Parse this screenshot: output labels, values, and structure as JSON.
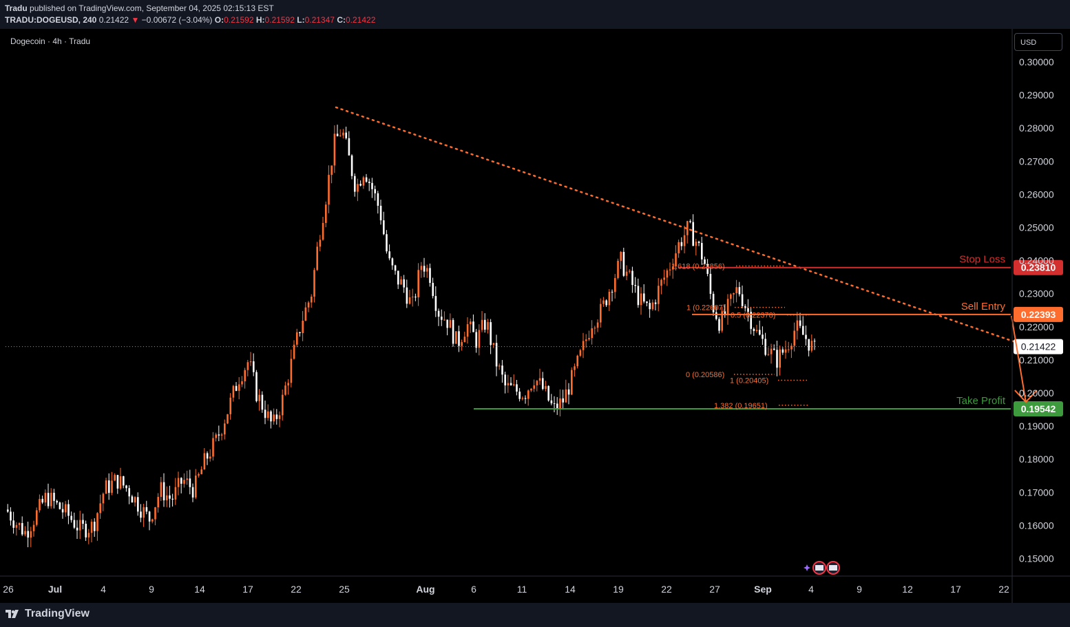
{
  "header": {
    "publisher": "Tradu",
    "published_text": "published on TradingView.com, September 04, 2025 02:15:13 EST",
    "symbol": "TRADU:DOGEUSD, 240",
    "last": "0.21422",
    "change_arrow": "▼",
    "change": "−0.00672 (−3.04%)",
    "o_label": "O:",
    "o_value": "0.21592",
    "h_label": "H:",
    "h_value": "0.21592",
    "l_label": "L:",
    "l_value": "0.21347",
    "c_label": "C:",
    "c_value": "0.21422"
  },
  "chart_label": "Dogecoin · 4h · Tradu",
  "currency_button": "USD",
  "footer": {
    "brand": "TradingView",
    "logo_icon": "tradingview-logo-icon"
  },
  "colors": {
    "up": "#ff6d2e",
    "down": "#ffffff",
    "stop": "#d32f2f",
    "entry": "#ff6d2e",
    "profit": "#3d9a3d",
    "trend": "#ff6d2e",
    "bg": "#000000"
  },
  "chart_data": {
    "type": "candlestick",
    "title": "Dogecoin · 4h · Tradu",
    "ylim": [
      0.1435,
      0.3085
    ],
    "y_ticks": [
      "0.30000",
      "0.29000",
      "0.28000",
      "0.27000",
      "0.26000",
      "0.25000",
      "0.24000",
      "0.23000",
      "0.22000",
      "0.21000",
      "0.20000",
      "0.19000",
      "0.18000",
      "0.17000",
      "0.16000",
      "0.15000"
    ],
    "x_ticks": [
      "26",
      "Jul",
      "4",
      "9",
      "14",
      "17",
      "22",
      "25",
      "Aug",
      "6",
      "11",
      "14",
      "19",
      "22",
      "27",
      "Sep",
      "4",
      "9",
      "12",
      "17",
      "22"
    ],
    "last_price": "0.21422",
    "price_path": [
      [
        0,
        0.165
      ],
      [
        0.6,
        0.161
      ],
      [
        1.2,
        0.158
      ],
      [
        1.8,
        0.163
      ],
      [
        2.5,
        0.169
      ],
      [
        3.2,
        0.166
      ],
      [
        3.9,
        0.163
      ],
      [
        4.6,
        0.159
      ],
      [
        5.4,
        0.16
      ],
      [
        6.1,
        0.171
      ],
      [
        6.9,
        0.174
      ],
      [
        7.6,
        0.171
      ],
      [
        8.3,
        0.166
      ],
      [
        8.9,
        0.162
      ],
      [
        9.6,
        0.171
      ],
      [
        10.3,
        0.168
      ],
      [
        11,
        0.174
      ],
      [
        11.7,
        0.171
      ],
      [
        12.4,
        0.18
      ],
      [
        13.1,
        0.186
      ],
      [
        13.8,
        0.195
      ],
      [
        14.5,
        0.205
      ],
      [
        15.1,
        0.21
      ],
      [
        15.6,
        0.2
      ],
      [
        16.1,
        0.195
      ],
      [
        16.6,
        0.19
      ],
      [
        17.2,
        0.198
      ],
      [
        17.8,
        0.21
      ],
      [
        18.4,
        0.222
      ],
      [
        19,
        0.23
      ],
      [
        19.5,
        0.248
      ],
      [
        20,
        0.262
      ],
      [
        20.4,
        0.275
      ],
      [
        20.9,
        0.28
      ],
      [
        21.3,
        0.272
      ],
      [
        21.8,
        0.262
      ],
      [
        22.3,
        0.268
      ],
      [
        22.8,
        0.262
      ],
      [
        23.3,
        0.255
      ],
      [
        23.8,
        0.24
      ],
      [
        24.3,
        0.235
      ],
      [
        24.8,
        0.232
      ],
      [
        25.3,
        0.226
      ],
      [
        25.9,
        0.24
      ],
      [
        26.4,
        0.236
      ],
      [
        26.9,
        0.225
      ],
      [
        27.5,
        0.222
      ],
      [
        28.1,
        0.215
      ],
      [
        28.7,
        0.221
      ],
      [
        29.3,
        0.216
      ],
      [
        29.9,
        0.222
      ],
      [
        30.5,
        0.21
      ],
      [
        31.1,
        0.202
      ],
      [
        31.7,
        0.201
      ],
      [
        32.3,
        0.2
      ],
      [
        32.9,
        0.205
      ],
      [
        33.5,
        0.201
      ],
      [
        34.1,
        0.195
      ],
      [
        34.7,
        0.198
      ],
      [
        35.3,
        0.205
      ],
      [
        35.9,
        0.213
      ],
      [
        36.5,
        0.222
      ],
      [
        37.1,
        0.225
      ],
      [
        37.7,
        0.233
      ],
      [
        38.3,
        0.24
      ],
      [
        38.9,
        0.234
      ],
      [
        39.5,
        0.228
      ],
      [
        40.1,
        0.225
      ],
      [
        40.7,
        0.232
      ],
      [
        41.3,
        0.238
      ],
      [
        41.9,
        0.245
      ],
      [
        42.5,
        0.25
      ],
      [
        43,
        0.246
      ],
      [
        43.5,
        0.24
      ],
      [
        44,
        0.227
      ],
      [
        44.5,
        0.221
      ],
      [
        45,
        0.226
      ],
      [
        45.6,
        0.232
      ],
      [
        46.2,
        0.225
      ],
      [
        46.8,
        0.218
      ],
      [
        47.4,
        0.214
      ],
      [
        48,
        0.21
      ],
      [
        48.6,
        0.214
      ],
      [
        49.2,
        0.22
      ],
      [
        49.8,
        0.217
      ],
      [
        50.4,
        0.213
      ],
      [
        51,
        0.212
      ],
      [
        51.6,
        0.21
      ],
      [
        52.1,
        0.238
      ],
      [
        52.6,
        0.225
      ],
      [
        53.1,
        0.218
      ],
      [
        53.7,
        0.207
      ],
      [
        54.3,
        0.212
      ],
      [
        54.9,
        0.218
      ],
      [
        55.5,
        0.222
      ],
      [
        56.1,
        0.221
      ],
      [
        56.7,
        0.224
      ],
      [
        57.3,
        0.22
      ],
      [
        57.9,
        0.214
      ],
      [
        58.5,
        0.209
      ],
      [
        59.1,
        0.21
      ],
      [
        59.7,
        0.206
      ],
      [
        60.3,
        0.214
      ],
      [
        60.9,
        0.218
      ],
      [
        61.5,
        0.222
      ],
      [
        61.9,
        0.2185
      ],
      [
        62.3,
        0.2142
      ]
    ],
    "annotations": {
      "stop_loss": {
        "label": "Stop Loss",
        "price": "0.23810",
        "color": "#d32f2f"
      },
      "sell_entry": {
        "label": "Sell Entry",
        "price": "0.22393",
        "color": "#ff6d2e"
      },
      "take_profit": {
        "label": "Take Profit",
        "price": "0.19542",
        "color": "#3d9a3d"
      },
      "fib_levels": [
        {
          "text": "1.618 (0.23856)",
          "price": 0.23856
        },
        {
          "text": "1 (0.22607)",
          "price": 0.22607
        },
        {
          "text": "0.5 (0.22378)",
          "price": 0.22378
        },
        {
          "text": "0 (0.20586)",
          "price": 0.20586
        },
        {
          "text": "1 (0.20405)",
          "price": 0.20405
        },
        {
          "text": "1.382 (0.19651)",
          "price": 0.19651
        }
      ],
      "trendline": {
        "from": {
          "day": 20.6,
          "price": 0.2865
        },
        "to": {
          "day": 64.8,
          "price": 0.2125
        }
      },
      "arrow": {
        "from": {
          "day": 62.7,
          "price": 0.2235
        },
        "to": {
          "day": 63.6,
          "price": 0.1975
        }
      }
    }
  }
}
